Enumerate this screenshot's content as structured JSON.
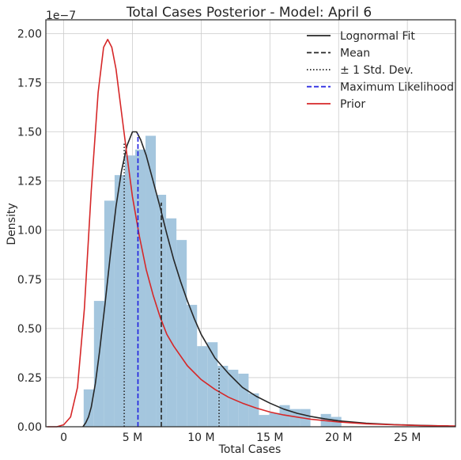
{
  "chart_data": {
    "type": "histogram",
    "title": "Total Cases Posterior - Model: April 6",
    "xlabel": "Total Cases",
    "ylabel": "Density",
    "y_multiplier_label": "1e−7",
    "xlim": [
      -1.3,
      28.5
    ],
    "ylim": [
      0,
      2.07
    ],
    "x_unit": "millions",
    "y_unit": "1e-7",
    "x_ticks": [
      0,
      5,
      10,
      15,
      20,
      25
    ],
    "x_tick_labels": [
      "0",
      "5 M",
      "10 M",
      "15 M",
      "20 M",
      "25 M"
    ],
    "y_ticks": [
      0,
      0.25,
      0.5,
      0.75,
      1.0,
      1.25,
      1.5,
      1.75,
      2.0
    ],
    "y_tick_labels": [
      "0.00",
      "0.25",
      "0.50",
      "0.75",
      "1.00",
      "1.25",
      "1.50",
      "1.75",
      "2.00"
    ],
    "grid": true,
    "legend_position": "top-right",
    "histogram": {
      "color": "#a4c6de",
      "bins": [
        {
          "x0": 1.45,
          "x1": 2.2,
          "value": 0.19
        },
        {
          "x0": 2.2,
          "x1": 2.95,
          "value": 0.64
        },
        {
          "x0": 2.95,
          "x1": 3.7,
          "value": 1.15
        },
        {
          "x0": 3.7,
          "x1": 4.45,
          "value": 1.28
        },
        {
          "x0": 4.45,
          "x1": 5.2,
          "value": 1.38
        },
        {
          "x0": 5.2,
          "x1": 5.95,
          "value": 1.41
        },
        {
          "x0": 5.95,
          "x1": 6.7,
          "value": 1.48
        },
        {
          "x0": 6.7,
          "x1": 7.45,
          "value": 1.18
        },
        {
          "x0": 7.45,
          "x1": 8.2,
          "value": 1.06
        },
        {
          "x0": 8.2,
          "x1": 8.95,
          "value": 0.95
        },
        {
          "x0": 8.95,
          "x1": 9.7,
          "value": 0.62
        },
        {
          "x0": 9.7,
          "x1": 10.45,
          "value": 0.41
        },
        {
          "x0": 10.45,
          "x1": 11.2,
          "value": 0.43
        },
        {
          "x0": 11.2,
          "x1": 11.95,
          "value": 0.31
        },
        {
          "x0": 11.95,
          "x1": 12.7,
          "value": 0.29
        },
        {
          "x0": 12.7,
          "x1": 13.45,
          "value": 0.27
        },
        {
          "x0": 13.45,
          "x1": 14.2,
          "value": 0.17
        },
        {
          "x0": 14.2,
          "x1": 14.95,
          "value": 0.06
        },
        {
          "x0": 14.95,
          "x1": 15.7,
          "value": 0.07
        },
        {
          "x0": 15.7,
          "x1": 16.45,
          "value": 0.11
        },
        {
          "x0": 16.45,
          "x1": 17.2,
          "value": 0.09
        },
        {
          "x0": 17.2,
          "x1": 17.95,
          "value": 0.09
        },
        {
          "x0": 18.7,
          "x1": 19.45,
          "value": 0.065
        },
        {
          "x0": 19.45,
          "x1": 20.2,
          "value": 0.05
        }
      ]
    },
    "series": [
      {
        "name": "Lognormal Fit",
        "kind": "curve",
        "color": "#262626",
        "dash": "solid",
        "x": [
          1.4,
          1.6,
          1.8,
          2.0,
          2.3,
          2.6,
          3.0,
          3.4,
          3.8,
          4.2,
          4.6,
          5.0,
          5.3,
          5.6,
          6.0,
          6.5,
          7.0,
          7.5,
          8.0,
          8.5,
          9.0,
          9.5,
          10.0,
          11.0,
          12.0,
          13.0,
          14.0,
          15.0,
          16.0,
          17.0,
          18.0,
          19.0,
          20.0,
          22.0,
          24.0,
          26.0,
          28.0
        ],
        "y": [
          0.0,
          0.02,
          0.05,
          0.1,
          0.22,
          0.38,
          0.62,
          0.88,
          1.12,
          1.3,
          1.43,
          1.5,
          1.5,
          1.46,
          1.38,
          1.25,
          1.12,
          0.98,
          0.85,
          0.74,
          0.64,
          0.55,
          0.47,
          0.35,
          0.27,
          0.2,
          0.155,
          0.12,
          0.09,
          0.068,
          0.052,
          0.04,
          0.03,
          0.018,
          0.011,
          0.007,
          0.004
        ]
      },
      {
        "name": "Prior",
        "kind": "curve",
        "color": "#d62728",
        "dash": "solid",
        "x": [
          -1.2,
          -0.5,
          0.0,
          0.5,
          1.0,
          1.5,
          2.0,
          2.5,
          2.9,
          3.2,
          3.5,
          3.8,
          4.2,
          4.6,
          5.0,
          5.5,
          6.0,
          6.5,
          7.0,
          7.5,
          8.0,
          9.0,
          10.0,
          11.0,
          12.0,
          13.0,
          14.0,
          15.0,
          16.0,
          18.0,
          20.0,
          22.0,
          24.0,
          26.0,
          28.5
        ],
        "y": [
          0.0,
          0.0,
          0.01,
          0.05,
          0.2,
          0.6,
          1.2,
          1.7,
          1.93,
          1.97,
          1.93,
          1.82,
          1.6,
          1.38,
          1.17,
          0.97,
          0.8,
          0.67,
          0.56,
          0.47,
          0.41,
          0.31,
          0.24,
          0.19,
          0.15,
          0.12,
          0.095,
          0.075,
          0.06,
          0.038,
          0.024,
          0.015,
          0.01,
          0.006,
          0.004
        ]
      },
      {
        "name": "Mean",
        "kind": "vline",
        "color": "#262626",
        "dash": "dashed",
        "x": 7.1,
        "y_top": 1.14
      },
      {
        "name": "± 1 Std. Dev.",
        "kind": "vline",
        "color": "#262626",
        "dash": "dotted",
        "x_values": [
          4.4,
          11.3
        ],
        "y_tops": [
          1.45,
          0.3
        ]
      },
      {
        "name": "Maximum Likelihood",
        "kind": "vline",
        "color": "#1f1fe0",
        "dash": "dashed",
        "x": 5.4,
        "y_top": 1.49
      }
    ],
    "legend": [
      {
        "label": "Lognormal Fit",
        "color": "#262626",
        "dash": "solid"
      },
      {
        "label": "Mean",
        "color": "#262626",
        "dash": "dashed"
      },
      {
        "label": "± 1 Std. Dev.",
        "color": "#262626",
        "dash": "dotted"
      },
      {
        "label": "Maximum Likelihood",
        "color": "#1f1fe0",
        "dash": "dashed"
      },
      {
        "label": "Prior",
        "color": "#d62728",
        "dash": "solid"
      }
    ]
  }
}
